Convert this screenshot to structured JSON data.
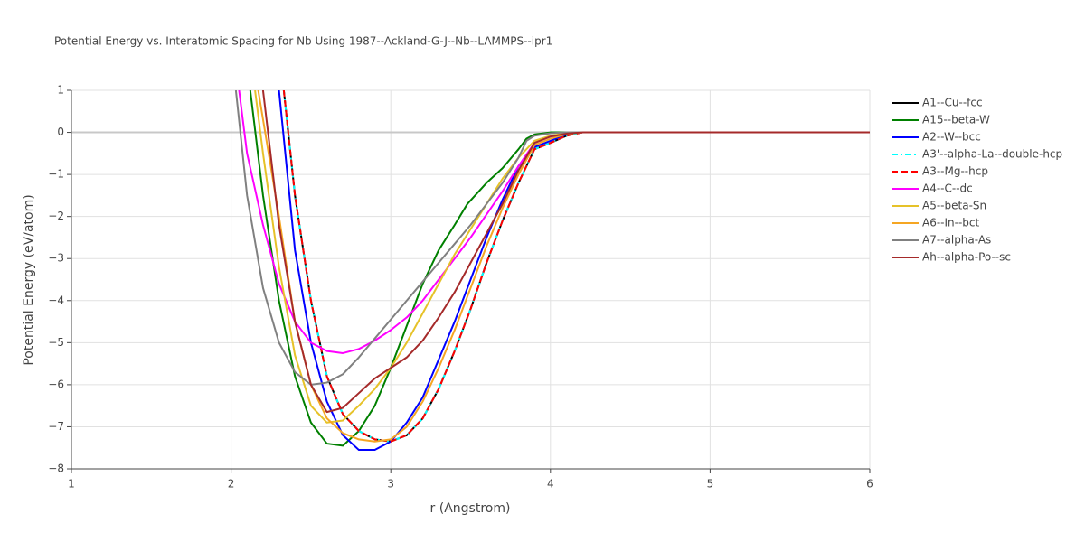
{
  "chart_data": {
    "type": "line",
    "title": "Potential Energy vs. Interatomic Spacing for Nb Using 1987--Ackland-G-J--Nb--LAMMPS--ipr1",
    "xlabel": "r (Angstrom)",
    "ylabel": "Potential Energy (eV/atom)",
    "xlim": [
      1,
      6
    ],
    "ylim": [
      -8,
      1
    ],
    "xticks": [
      1,
      2,
      3,
      4,
      5,
      6
    ],
    "yticks": [
      {
        "value": -8,
        "label": "−8"
      },
      {
        "value": -7,
        "label": "−7"
      },
      {
        "value": -6,
        "label": "−6"
      },
      {
        "value": -5,
        "label": "−5"
      },
      {
        "value": -4,
        "label": "−4"
      },
      {
        "value": -3,
        "label": "−3"
      },
      {
        "value": -2,
        "label": "−2"
      },
      {
        "value": -1,
        "label": "−1"
      },
      0,
      1
    ],
    "grid": true,
    "legend": "right",
    "series": [
      {
        "name": "A1--Cu--fcc",
        "color": "#000000",
        "dash": "solid",
        "x": [
          2.33,
          2.4,
          2.5,
          2.6,
          2.7,
          2.8,
          2.9,
          3.0,
          3.1,
          3.2,
          3.3,
          3.4,
          3.5,
          3.6,
          3.7,
          3.8,
          3.9,
          4.0,
          4.1,
          4.2,
          6
        ],
        "values": [
          1,
          -1.5,
          -4.0,
          -5.8,
          -6.7,
          -7.1,
          -7.3,
          -7.35,
          -7.2,
          -6.8,
          -6.1,
          -5.2,
          -4.2,
          -3.1,
          -2.1,
          -1.2,
          -0.4,
          -0.25,
          -0.08,
          0,
          0
        ]
      },
      {
        "name": "A15--beta-W",
        "color": "#008000",
        "dash": "solid",
        "x": [
          2.12,
          2.2,
          2.3,
          2.4,
          2.5,
          2.6,
          2.7,
          2.8,
          2.9,
          3.0,
          3.1,
          3.2,
          3.3,
          3.4,
          3.48,
          3.6,
          3.7,
          3.8,
          3.85,
          3.9,
          4.0,
          6
        ],
        "values": [
          1,
          -1.5,
          -4.0,
          -5.8,
          -6.9,
          -7.4,
          -7.45,
          -7.1,
          -6.5,
          -5.6,
          -4.6,
          -3.6,
          -2.8,
          -2.2,
          -1.7,
          -1.2,
          -0.85,
          -0.4,
          -0.15,
          -0.05,
          0,
          0
        ]
      },
      {
        "name": "A2--W--bcc",
        "color": "#0000ff",
        "dash": "solid",
        "x": [
          2.3,
          2.4,
          2.5,
          2.6,
          2.7,
          2.8,
          2.9,
          3.0,
          3.1,
          3.2,
          3.3,
          3.4,
          3.5,
          3.6,
          3.7,
          3.8,
          3.9,
          4.0,
          4.1,
          4.2,
          6
        ],
        "values": [
          1,
          -2.8,
          -5.0,
          -6.4,
          -7.2,
          -7.55,
          -7.55,
          -7.35,
          -6.9,
          -6.3,
          -5.4,
          -4.5,
          -3.5,
          -2.5,
          -1.6,
          -0.8,
          -0.35,
          -0.2,
          -0.05,
          0,
          0
        ]
      },
      {
        "name": "A3'--alpha-La--double-hcp",
        "color": "#00ffff",
        "dash": "dashdot",
        "x": [
          2.33,
          2.4,
          2.5,
          2.6,
          2.7,
          2.8,
          2.9,
          3.0,
          3.1,
          3.2,
          3.3,
          3.4,
          3.5,
          3.6,
          3.7,
          3.8,
          3.9,
          4.0,
          4.1,
          4.2,
          6
        ],
        "values": [
          1,
          -1.5,
          -4.0,
          -5.8,
          -6.7,
          -7.1,
          -7.3,
          -7.35,
          -7.2,
          -6.8,
          -6.1,
          -5.2,
          -4.2,
          -3.1,
          -2.1,
          -1.2,
          -0.4,
          -0.25,
          -0.08,
          0,
          0
        ]
      },
      {
        "name": "A3--Mg--hcp",
        "color": "#ff0000",
        "dash": "dash",
        "x": [
          2.33,
          2.4,
          2.5,
          2.6,
          2.7,
          2.8,
          2.9,
          3.0,
          3.1,
          3.2,
          3.3,
          3.4,
          3.5,
          3.6,
          3.7,
          3.8,
          3.9,
          4.0,
          4.1,
          4.2,
          6
        ],
        "values": [
          1,
          -1.5,
          -4.0,
          -5.8,
          -6.7,
          -7.1,
          -7.3,
          -7.35,
          -7.2,
          -6.8,
          -6.1,
          -5.2,
          -4.2,
          -3.1,
          -2.1,
          -1.2,
          -0.4,
          -0.25,
          -0.08,
          0,
          0
        ]
      },
      {
        "name": "A4--C--dc",
        "color": "#ff00ff",
        "dash": "solid",
        "x": [
          2.05,
          2.1,
          2.2,
          2.3,
          2.4,
          2.5,
          2.6,
          2.7,
          2.8,
          2.9,
          3.0,
          3.1,
          3.2,
          3.3,
          3.4,
          3.5,
          3.6,
          3.7,
          3.8,
          3.9,
          4.0,
          4.1,
          4.2,
          6
        ],
        "values": [
          1,
          -0.5,
          -2.2,
          -3.6,
          -4.5,
          -5.0,
          -5.2,
          -5.25,
          -5.15,
          -4.95,
          -4.7,
          -4.4,
          -4.0,
          -3.5,
          -3.0,
          -2.5,
          -1.95,
          -1.4,
          -0.8,
          -0.25,
          -0.1,
          -0.03,
          0,
          0
        ]
      },
      {
        "name": "A5--beta-Sn",
        "color": "#e6c229",
        "dash": "solid",
        "x": [
          2.15,
          2.2,
          2.3,
          2.4,
          2.5,
          2.6,
          2.7,
          2.8,
          2.9,
          3.0,
          3.1,
          3.2,
          3.3,
          3.4,
          3.5,
          3.6,
          3.7,
          3.8,
          3.9,
          4.0,
          4.1,
          4.2,
          6
        ],
        "values": [
          1,
          -0.5,
          -3.2,
          -5.3,
          -6.5,
          -6.9,
          -6.85,
          -6.5,
          -6.1,
          -5.6,
          -5.0,
          -4.3,
          -3.6,
          -2.9,
          -2.3,
          -1.7,
          -1.1,
          -0.6,
          -0.2,
          -0.08,
          -0.02,
          0,
          0
        ]
      },
      {
        "name": "A6--In--bct",
        "color": "#f5a623",
        "dash": "solid",
        "x": [
          2.17,
          2.3,
          2.4,
          2.5,
          2.6,
          2.7,
          2.8,
          2.9,
          3.0,
          3.1,
          3.2,
          3.3,
          3.4,
          3.5,
          3.6,
          3.7,
          3.8,
          3.9,
          4.0,
          4.1,
          4.2,
          6
        ],
        "values": [
          1,
          -2.0,
          -4.5,
          -6.0,
          -6.8,
          -7.15,
          -7.3,
          -7.35,
          -7.3,
          -7.0,
          -6.4,
          -5.6,
          -4.7,
          -3.7,
          -2.7,
          -1.8,
          -1.0,
          -0.3,
          -0.15,
          -0.04,
          0,
          0
        ]
      },
      {
        "name": "A7--alpha-As",
        "color": "#808080",
        "dash": "solid",
        "x": [
          2.03,
          2.1,
          2.2,
          2.3,
          2.4,
          2.5,
          2.6,
          2.7,
          2.8,
          2.9,
          3.0,
          3.1,
          3.2,
          3.3,
          3.4,
          3.5,
          3.6,
          3.7,
          3.8,
          3.85,
          3.9,
          4.0,
          4.1,
          6
        ],
        "values": [
          1,
          -1.5,
          -3.7,
          -5.0,
          -5.7,
          -6.0,
          -5.95,
          -5.75,
          -5.35,
          -4.9,
          -4.45,
          -4.0,
          -3.55,
          -3.1,
          -2.65,
          -2.2,
          -1.7,
          -1.2,
          -0.6,
          -0.2,
          -0.08,
          -0.02,
          0,
          0
        ]
      },
      {
        "name": "Ah--alpha-Po--sc",
        "color": "#a52a2a",
        "dash": "solid",
        "x": [
          2.2,
          2.3,
          2.4,
          2.5,
          2.6,
          2.7,
          2.8,
          2.9,
          3.0,
          3.1,
          3.2,
          3.3,
          3.4,
          3.5,
          3.6,
          3.7,
          3.8,
          3.9,
          4.0,
          4.1,
          4.2,
          6
        ],
        "values": [
          1,
          -2.2,
          -4.5,
          -6.0,
          -6.65,
          -6.55,
          -6.2,
          -5.85,
          -5.6,
          -5.35,
          -4.95,
          -4.4,
          -3.8,
          -3.1,
          -2.4,
          -1.7,
          -0.9,
          -0.25,
          -0.1,
          -0.03,
          0,
          0
        ]
      }
    ]
  }
}
